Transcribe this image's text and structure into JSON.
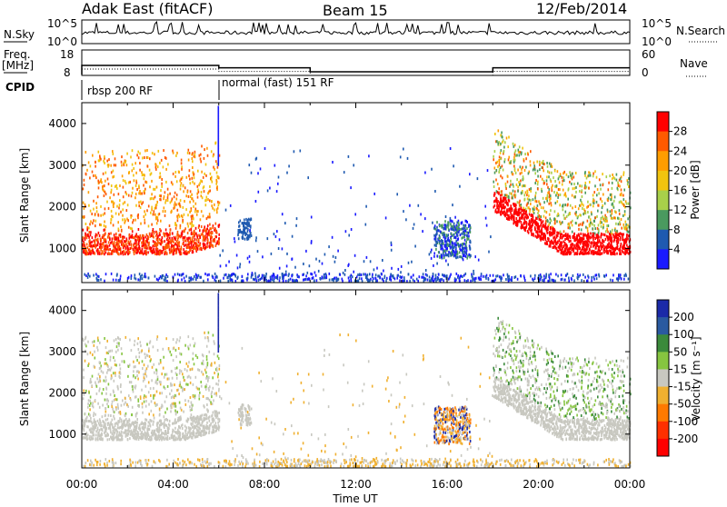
{
  "header": {
    "title": "Adak East (fitACF)",
    "beam": "Beam 15",
    "date": "12/Feb/2014"
  },
  "top_panels": {
    "nsky": {
      "label": "N.Sky",
      "left_ticks": [
        "10^5",
        "10^0"
      ],
      "right_ticks": [
        "10^5",
        "10^0"
      ],
      "right_label": "N.Search"
    },
    "freq": {
      "label_top": "Freq.",
      "label_bottom": "[MHz]",
      "left_ticks": [
        "18",
        "8"
      ],
      "right_ticks": [
        "60",
        "0"
      ],
      "right_label": "Nave",
      "series_hours": [
        0,
        6,
        10,
        18,
        24
      ],
      "freq_levels": [
        13.5,
        12.2,
        10.0,
        12.2
      ]
    },
    "cpid": {
      "label": "CPID",
      "segments": [
        {
          "start_hour": 0,
          "label": "rbsp 200 RF"
        },
        {
          "start_hour": 6,
          "label": "normal (fast) 151 RF"
        }
      ]
    }
  },
  "chart_data": [
    {
      "type": "heatmap",
      "name": "power",
      "ylabel": "Slant Range [km]",
      "yticks": [
        "1000",
        "2000",
        "3000",
        "4000"
      ],
      "ylim": [
        180,
        4500
      ],
      "xlim_hours": [
        0,
        24
      ],
      "colorbar": {
        "label": "Power [dB]",
        "ticks": [
          "28",
          "24",
          "20",
          "16",
          "12",
          "8",
          "4"
        ],
        "colors": [
          "#ff0000",
          "#ff5a00",
          "#ff9d00",
          "#f1c40f",
          "#a8d04a",
          "#4a9a5f",
          "#1f5ab0",
          "#1a1aff"
        ]
      }
    },
    {
      "type": "heatmap",
      "name": "velocity",
      "ylabel": "Slant Range [km]",
      "yticks": [
        "1000",
        "2000",
        "3000",
        "4000"
      ],
      "ylim": [
        180,
        4500
      ],
      "xlim_hours": [
        0,
        24
      ],
      "colorbar": {
        "label": "Velocity [m s⁻¹]",
        "ticks": [
          "200",
          "100",
          "50",
          "15",
          "-15",
          "-50",
          "-100",
          "-200"
        ],
        "colors": [
          "#1b2aa8",
          "#2a5aa0",
          "#3b8a3b",
          "#86c540",
          "#c8c8c0",
          "#f0b030",
          "#ff7a00",
          "#ff3000",
          "#ff0000"
        ]
      }
    }
  ],
  "x_axis": {
    "ticks": [
      "00:00",
      "04:00",
      "08:00",
      "12:00",
      "16:00",
      "20:00",
      "00:00"
    ],
    "label": "Time UT"
  }
}
